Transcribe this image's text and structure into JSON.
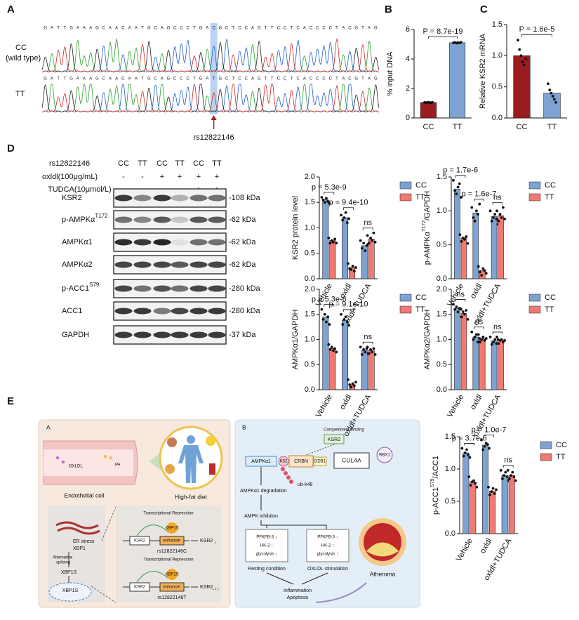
{
  "panel_labels": [
    "A",
    "B",
    "C",
    "D",
    "E"
  ],
  "sequencing": {
    "row_labels": [
      [
        "CC",
        "(wild type)"
      ],
      [
        "TT"
      ]
    ],
    "sequences": [
      "GATTGAAAGCAACAATGCAGCCCTGACGCTCCAGTTCCTCACCCCTACGTAG",
      "GATTGAAAGCAACAATGCAGCCCTGATGCTCCAGTTCCTCACCCCTACGTAG"
    ],
    "snp": "rs12822146"
  },
  "blot": {
    "header": [
      "rs12822146",
      "oxldl(100μg/mL)",
      "TUDCA(10μmol/L)"
    ],
    "lanes": [
      [
        "CC",
        "TT",
        "CC",
        "TT",
        "CC",
        "TT"
      ],
      [
        "-",
        "-",
        "+",
        "+",
        "+",
        "+"
      ],
      [
        "-",
        "-",
        "-",
        "-",
        "+",
        "+"
      ]
    ],
    "rows": [
      {
        "label": "KSR2",
        "kda": "-108 kDa"
      },
      {
        "label": "p-AMPKα",
        "sup": "T172",
        "kda": "-62 kDa"
      },
      {
        "label": "AMPKα1",
        "kda": "-62 kDa"
      },
      {
        "label": "AMPKα2",
        "kda": "-62 kDa"
      },
      {
        "label": "p-ACC1",
        "sup": "S79",
        "kda": "-280 kDa"
      },
      {
        "label": "ACC1",
        "kda": "-280 kDa"
      },
      {
        "label": "GAPDH",
        "kda": "-37 kDa"
      }
    ]
  },
  "chart_data": [
    {
      "type": "bar",
      "categories": [
        "CC",
        "TT"
      ],
      "values": [
        1.05,
        5.1
      ],
      "colors": [
        "#9b1c1f",
        "#7ea3d3"
      ],
      "points": [
        [
          1.05,
          1.04,
          1.06,
          1.05,
          1.03,
          1.06
        ],
        [
          5.1,
          5.12,
          5.08,
          5.11,
          5.09,
          5.13
        ]
      ],
      "ylabel": "% input DNA",
      "ylim": [
        0,
        6
      ],
      "yticks": [
        0,
        2,
        4,
        6
      ],
      "comparison": "P = 8.7e-19"
    },
    {
      "type": "bar",
      "categories": [
        "CC",
        "TT"
      ],
      "values": [
        1.0,
        0.4
      ],
      "colors": [
        "#9b1c1f",
        "#7ea3d3"
      ],
      "points": [
        [
          1.25,
          1.1,
          1.0,
          0.9,
          0.85,
          0.95
        ],
        [
          0.55,
          0.45,
          0.4,
          0.35,
          0.3,
          0.25
        ]
      ],
      "ylabel": "Relative KSR2 mRNA",
      "ylim": [
        0,
        1.5
      ],
      "yticks": [
        {
          "value": 0,
          "label": "0.0"
        },
        0.5,
        {
          "value": 1,
          "label": "1.0"
        },
        1.5
      ],
      "comparison": "P = 1.6e-5"
    },
    {
      "type": "bar",
      "categories": [
        "Vehicle",
        "oxldl",
        "oxldl+TUDCA"
      ],
      "series": [
        {
          "name": "CC",
          "color": "#7ea3d3",
          "values": [
            1.55,
            1.2,
            0.65
          ],
          "points": [
            [
              1.6,
              1.55,
              1.5,
              1.58,
              1.52,
              1.48
            ],
            [
              1.25,
              1.15,
              1.2,
              1.3,
              1.1,
              1.18
            ],
            [
              0.75,
              0.6,
              0.7,
              0.55,
              0.65,
              0.68
            ]
          ]
        },
        {
          "name": "TT",
          "color": "#f07a73",
          "values": [
            0.75,
            0.22,
            0.78
          ],
          "points": [
            [
              0.8,
              0.7,
              0.75,
              0.72,
              0.78,
              0.7
            ],
            [
              0.3,
              0.2,
              0.18,
              0.25,
              0.15,
              0.22
            ],
            [
              0.85,
              0.7,
              0.8,
              0.75,
              0.9,
              0.72
            ]
          ]
        }
      ],
      "ylabel": "KSR2 protein level",
      "ylim": [
        0,
        2
      ],
      "yticks": [
        {
          "value": 0,
          "label": "0.0"
        },
        0.5,
        {
          "value": 1,
          "label": "1.0"
        },
        1.5,
        {
          "value": 2,
          "label": "2.0"
        }
      ],
      "comparisons": [
        "p = 5.3e-9",
        "p = 9.4e-10",
        "ns"
      ],
      "legend": "right"
    },
    {
      "type": "bar",
      "categories": [
        "Vehicle",
        "oxldl",
        "oxldl+TUDCA"
      ],
      "series": [
        {
          "name": "CC",
          "color": "#7ea3d3",
          "values": [
            1.32,
            0.97,
            0.92
          ],
          "points": [
            [
              1.45,
              1.3,
              1.25,
              1.35,
              1.4,
              1.2
            ],
            [
              1.05,
              0.9,
              0.85,
              1.0,
              0.95,
              1.1
            ],
            [
              1.0,
              0.85,
              0.9,
              0.95,
              0.88,
              0.8
            ]
          ]
        },
        {
          "name": "TT",
          "color": "#f07a73",
          "values": [
            0.6,
            0.12,
            0.93
          ],
          "points": [
            [
              0.65,
              0.55,
              0.6,
              0.58,
              0.62,
              0.52
            ],
            [
              0.18,
              0.1,
              0.05,
              0.15,
              0.12,
              0.08
            ],
            [
              1.0,
              0.85,
              0.95,
              0.9,
              1.05,
              0.88
            ]
          ]
        }
      ],
      "ylabel": "p-AMPKα",
      "ylabel_sup": "T172",
      "ylabel_suffix": "/GAPDH",
      "ylim": [
        0,
        1.5
      ],
      "yticks": [
        {
          "value": 0,
          "label": "0.0"
        },
        0.5,
        {
          "value": 1,
          "label": "1.0"
        },
        1.5
      ],
      "comparisons": [
        "p = 1.7e-6",
        "p = 1.6e-7",
        "ns"
      ],
      "legend": "right"
    },
    {
      "type": "bar",
      "categories": [
        "Vehicle",
        "oxldl",
        "oxldl+TUDCA"
      ],
      "series": [
        {
          "name": "CC",
          "color": "#7ea3d3",
          "values": [
            1.45,
            1.38,
            0.78
          ],
          "points": [
            [
              1.6,
              1.4,
              1.5,
              1.35,
              1.45,
              1.3
            ],
            [
              1.5,
              1.3,
              1.4,
              1.45,
              1.35,
              1.28
            ],
            [
              0.85,
              0.7,
              0.8,
              0.75,
              0.82,
              0.72
            ]
          ]
        },
        {
          "name": "TT",
          "color": "#f07a73",
          "values": [
            0.82,
            0.1,
            0.78
          ],
          "points": [
            [
              0.9,
              0.8,
              0.85,
              0.78,
              0.82,
              0.75
            ],
            [
              0.2,
              0.1,
              0.05,
              0.12,
              0.08,
              0.15
            ],
            [
              0.85,
              0.72,
              0.8,
              0.75,
              0.82,
              0.7
            ]
          ]
        }
      ],
      "ylabel": "AMPKα1/GAPDH",
      "ylim": [
        0,
        2
      ],
      "yticks": [
        {
          "value": 0,
          "label": "0.0"
        },
        0.5,
        {
          "value": 1,
          "label": "1.0"
        },
        1.5,
        {
          "value": 2,
          "label": "2.0"
        }
      ],
      "comparisons": [
        "p = 5.3e-6",
        "p = 9.1e-10",
        "ns"
      ],
      "legend": "right"
    },
    {
      "type": "bar",
      "categories": [
        "Vehicle",
        "oxldl",
        "oxldl+TUDCA"
      ],
      "series": [
        {
          "name": "CC",
          "color": "#7ea3d3",
          "values": [
            1.62,
            1.05,
            0.97
          ],
          "points": [
            [
              1.7,
              1.6,
              1.65,
              1.55,
              1.62,
              1.6
            ],
            [
              1.15,
              1.0,
              1.05,
              1.1,
              0.95,
              1.02
            ],
            [
              1.05,
              0.9,
              0.95,
              1.0,
              0.92,
              1.0
            ]
          ]
        },
        {
          "name": "TT",
          "color": "#f07a73",
          "values": [
            1.52,
            1.02,
            0.98
          ],
          "points": [
            [
              1.62,
              1.45,
              1.55,
              1.5,
              1.58,
              1.4
            ],
            [
              1.1,
              0.95,
              1.0,
              1.05,
              0.98,
              1.02
            ],
            [
              1.05,
              0.92,
              0.98,
              1.0,
              0.95,
              0.98
            ]
          ]
        }
      ],
      "ylabel": "AMPKα2/GAPDH",
      "ylim": [
        0,
        2
      ],
      "yticks": [
        {
          "value": 0,
          "label": "0.0"
        },
        0.5,
        {
          "value": 1,
          "label": "1.0"
        },
        1.5,
        {
          "value": 2,
          "label": "2.0"
        }
      ],
      "comparisons": [
        "ns",
        "ns",
        "ns"
      ],
      "legend": "right"
    },
    {
      "type": "bar",
      "categories": [
        "Vehicle",
        "oxldl",
        "oxldl+TUDCA"
      ],
      "series": [
        {
          "name": "CC",
          "color": "#7ea3d3",
          "values": [
            1.25,
            1.37,
            0.9
          ],
          "points": [
            [
              1.32,
              1.2,
              1.25,
              1.3,
              1.22,
              1.18
            ],
            [
              1.45,
              1.3,
              1.35,
              1.4,
              1.38,
              1.32
            ],
            [
              0.98,
              0.85,
              0.9,
              0.95,
              0.88,
              0.82
            ]
          ]
        },
        {
          "name": "TT",
          "color": "#f07a73",
          "values": [
            0.8,
            0.66,
            0.9
          ],
          "points": [
            [
              0.88,
              0.75,
              0.8,
              0.82,
              0.78,
              0.72
            ],
            [
              0.72,
              0.6,
              0.65,
              0.7,
              0.62,
              0.68
            ],
            [
              0.98,
              0.85,
              0.9,
              0.95,
              0.88,
              0.82
            ]
          ]
        }
      ],
      "ylabel": "p-ACC1",
      "ylabel_sup": "S79",
      "ylabel_suffix": "/ACC1",
      "ylim": [
        0,
        1.5
      ],
      "yticks": [
        {
          "value": 0,
          "label": "0.0"
        },
        0.5,
        {
          "value": 1,
          "label": "1.0"
        },
        1.5
      ],
      "comparisons": [
        "p = 3.7e-6",
        "p = 1.0e-7",
        "ns"
      ],
      "legend": "right"
    }
  ],
  "diagram": {
    "left": {
      "label": "A",
      "oxldl": "OXLDL",
      "pa": "PA",
      "cell": "Endothelial cell",
      "diet": "High-fat diet",
      "er_stress": "ER stress",
      "xbp1": "XBP1",
      "splicing": [
        "Alternative",
        "splicing"
      ],
      "xbp1s": "XBP1S",
      "nucleus": "XBP1S",
      "repression": [
        "Transcriptional Repression",
        "Transcriptional Repression"
      ],
      "gene": [
        "KSR2",
        "KSR2"
      ],
      "enhancer": [
        "enhancer",
        "enhancer"
      ],
      "factor": [
        "XBP1S",
        "XBP1S"
      ],
      "allele": [
        "rs12822146C",
        "rs12822146T"
      ],
      "product": [
        "KSR2",
        "KSR2"
      ]
    },
    "right": {
      "label": "B",
      "binding": "Competitively Binding",
      "ksr2": "KSR2",
      "ampk": "AMPKα1",
      "k52": "K52",
      "crbn": "CRBN",
      "ddb1": "DDB1",
      "cul4a": "CUL4A",
      "rbx1": "RBX1",
      "ub": "ub-k48",
      "degradation": "AMPKα1 degradation",
      "inhibition": "AMPK inhibiton",
      "resting": [
        "PFKFB-3 ↓",
        "HK-2 ↓",
        "glycolysis ↓"
      ],
      "stimulated": [
        "PFKFB-3 ↑",
        "HK-2 ↑",
        "glycolysis ↑"
      ],
      "resting_label": "Resting condition",
      "stimulated_label": "OXLDL stimulation",
      "outcome": [
        "Inflammation",
        "Apoptosis"
      ],
      "atheroma": "Atheroma"
    }
  }
}
